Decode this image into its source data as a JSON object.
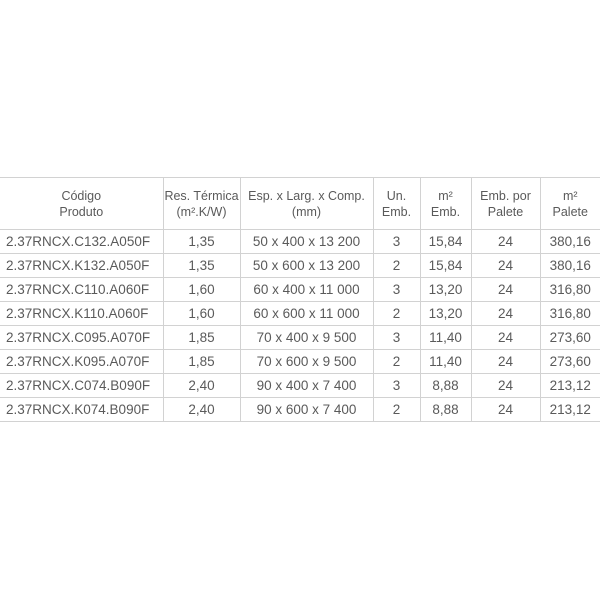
{
  "table": {
    "headers": [
      {
        "l1": "Código",
        "l2": "Produto"
      },
      {
        "l1": "Res. Térmica",
        "l2": "(m².K/W)"
      },
      {
        "l1": "Esp. x Larg. x Comp.",
        "l2": "(mm)"
      },
      {
        "l1": "Un.",
        "l2": "Emb."
      },
      {
        "l1": "m²",
        "l2": "Emb."
      },
      {
        "l1": "Emb. por",
        "l2": "Palete"
      },
      {
        "l1": "m²",
        "l2": "Palete"
      }
    ],
    "rows": [
      [
        "2.37RNCX.C132.A050F",
        "1,35",
        "50 x 400 x 13 200",
        "3",
        "15,84",
        "24",
        "380,16"
      ],
      [
        "2.37RNCX.K132.A050F",
        "1,35",
        "50 x 600 x 13 200",
        "2",
        "15,84",
        "24",
        "380,16"
      ],
      [
        "2.37RNCX.C110.A060F",
        "1,60",
        "60 x 400 x 11 000",
        "3",
        "13,20",
        "24",
        "316,80"
      ],
      [
        "2.37RNCX.K110.A060F",
        "1,60",
        "60 x 600 x 11 000",
        "2",
        "13,20",
        "24",
        "316,80"
      ],
      [
        "2.37RNCX.C095.A070F",
        "1,85",
        "70 x 400 x 9 500",
        "3",
        "11,40",
        "24",
        "273,60"
      ],
      [
        "2.37RNCX.K095.A070F",
        "1,85",
        "70 x 600 x 9 500",
        "2",
        "11,40",
        "24",
        "273,60"
      ],
      [
        "2.37RNCX.C074.B090F",
        "2,40",
        "90 x 400 x 7 400",
        "3",
        "8,88",
        "24",
        "213,12"
      ],
      [
        "2.37RNCX.K074.B090F",
        "2,40",
        "90 x 600 x 7 400",
        "2",
        "8,88",
        "24",
        "213,12"
      ]
    ]
  }
}
